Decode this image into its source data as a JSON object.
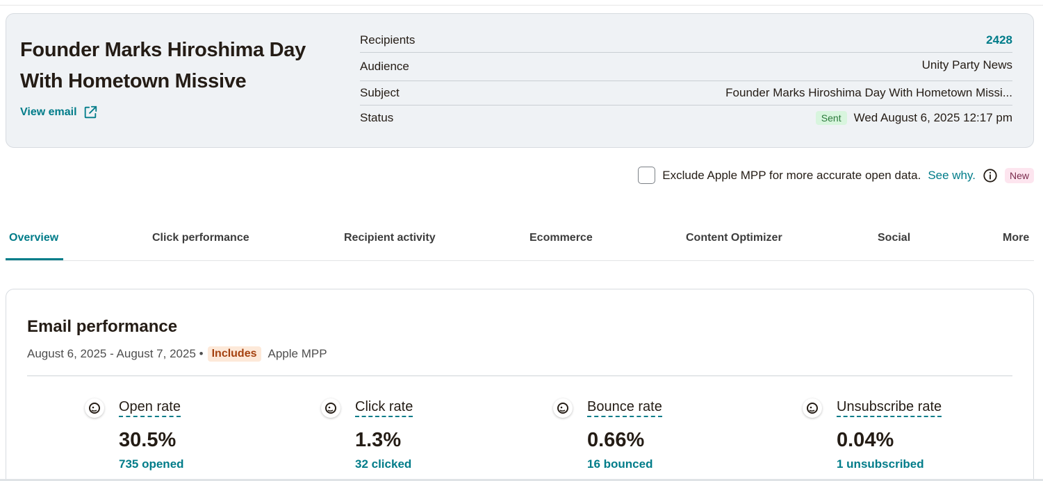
{
  "campaign": {
    "title": "Founder Marks Hiroshima Day With Hometown Missive",
    "view_email_label": "View email"
  },
  "details": [
    {
      "label": "Recipients",
      "value": "2428"
    },
    {
      "label": "Audience",
      "value": "Unity Party News"
    },
    {
      "label": "Subject",
      "value": "Founder Marks Hiroshima Day With Hometown Missi..."
    },
    {
      "label": "Status",
      "badge": "Sent",
      "value": "Wed August 6, 2025 12:17 pm"
    }
  ],
  "mpp": {
    "text": "Exclude Apple MPP for more accurate open data.",
    "link": "See why.",
    "badge": "New",
    "checked": false
  },
  "tabs": [
    "Overview",
    "Click performance",
    "Recipient activity",
    "Ecommerce",
    "Content Optimizer",
    "Social",
    "More"
  ],
  "active_tab": "Overview",
  "performance": {
    "title": "Email performance",
    "date_range": "August 6, 2025 - August 7, 2025 •",
    "includes_badge": "Includes",
    "includes_text": "Apple MPP",
    "metrics": [
      {
        "label": "Open rate",
        "value": "30.5%",
        "sub": "735 opened"
      },
      {
        "label": "Click rate",
        "value": "1.3%",
        "sub": "32 clicked"
      },
      {
        "label": "Bounce rate",
        "value": "0.66%",
        "sub": "16 bounced"
      },
      {
        "label": "Unsubscribe rate",
        "value": "0.04%",
        "sub": "1 unsubscribed"
      }
    ]
  },
  "icons": {
    "external_link": "external-link-icon",
    "info": "info-icon",
    "brand": "mailchimp-icon"
  },
  "colors": {
    "accent": "#007c89",
    "card_bg": "#eff2f5",
    "sent_badge_bg": "#d8f5de",
    "includes_badge_bg": "#fde9d9",
    "new_badge_bg": "#fde5ef"
  }
}
